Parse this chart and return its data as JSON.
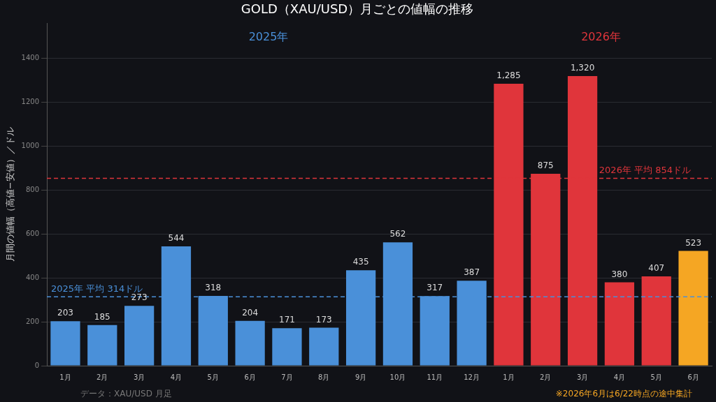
{
  "chart_data": {
    "type": "bar",
    "title": "GOLD（XAU/USD）月ごとの値幅の推移",
    "ylabel": "月間の値幅（高値−安値）／ドル",
    "categories": [
      "1月",
      "2月",
      "3月",
      "4月",
      "5月",
      "6月",
      "7月",
      "8月",
      "9月",
      "10月",
      "11月",
      "12月",
      "1月",
      "2月",
      "3月",
      "4月",
      "5月",
      "6月"
    ],
    "values": [
      203,
      185,
      273,
      544,
      318,
      204,
      171,
      173,
      435,
      562,
      317,
      387,
      1285,
      875,
      1320,
      380,
      407,
      523
    ],
    "colors": [
      "#4a90d9",
      "#4a90d9",
      "#4a90d9",
      "#4a90d9",
      "#4a90d9",
      "#4a90d9",
      "#4a90d9",
      "#4a90d9",
      "#4a90d9",
      "#4a90d9",
      "#4a90d9",
      "#4a90d9",
      "#e0353b",
      "#e0353b",
      "#e0353b",
      "#e0353b",
      "#e0353b",
      "#f5a623"
    ],
    "value_labels": [
      "203",
      "185",
      "273",
      "544",
      "318",
      "204",
      "171",
      "173",
      "435",
      "562",
      "317",
      "387",
      "1,285",
      "875",
      "1,320",
      "380",
      "407",
      "523"
    ],
    "ylim": [
      0,
      1560
    ],
    "yticks": [
      0,
      200,
      400,
      600,
      800,
      1000,
      1200,
      1400
    ],
    "grid": "y",
    "legend": false,
    "ref_lines": [
      {
        "axis": "y",
        "value": 314,
        "label": "2025年 平均 314ドル",
        "color": "#4a90d9",
        "line_style": "dashed"
      },
      {
        "axis": "y",
        "value": 854,
        "label": "2026年 平均 854ドル",
        "color": "#e0353b",
        "line_style": "dashed"
      }
    ],
    "annotations": [
      "2025年",
      "2026年",
      "データ：XAU/USD 月足",
      "※2026年6月は6/22時点の途中集計"
    ]
  }
}
